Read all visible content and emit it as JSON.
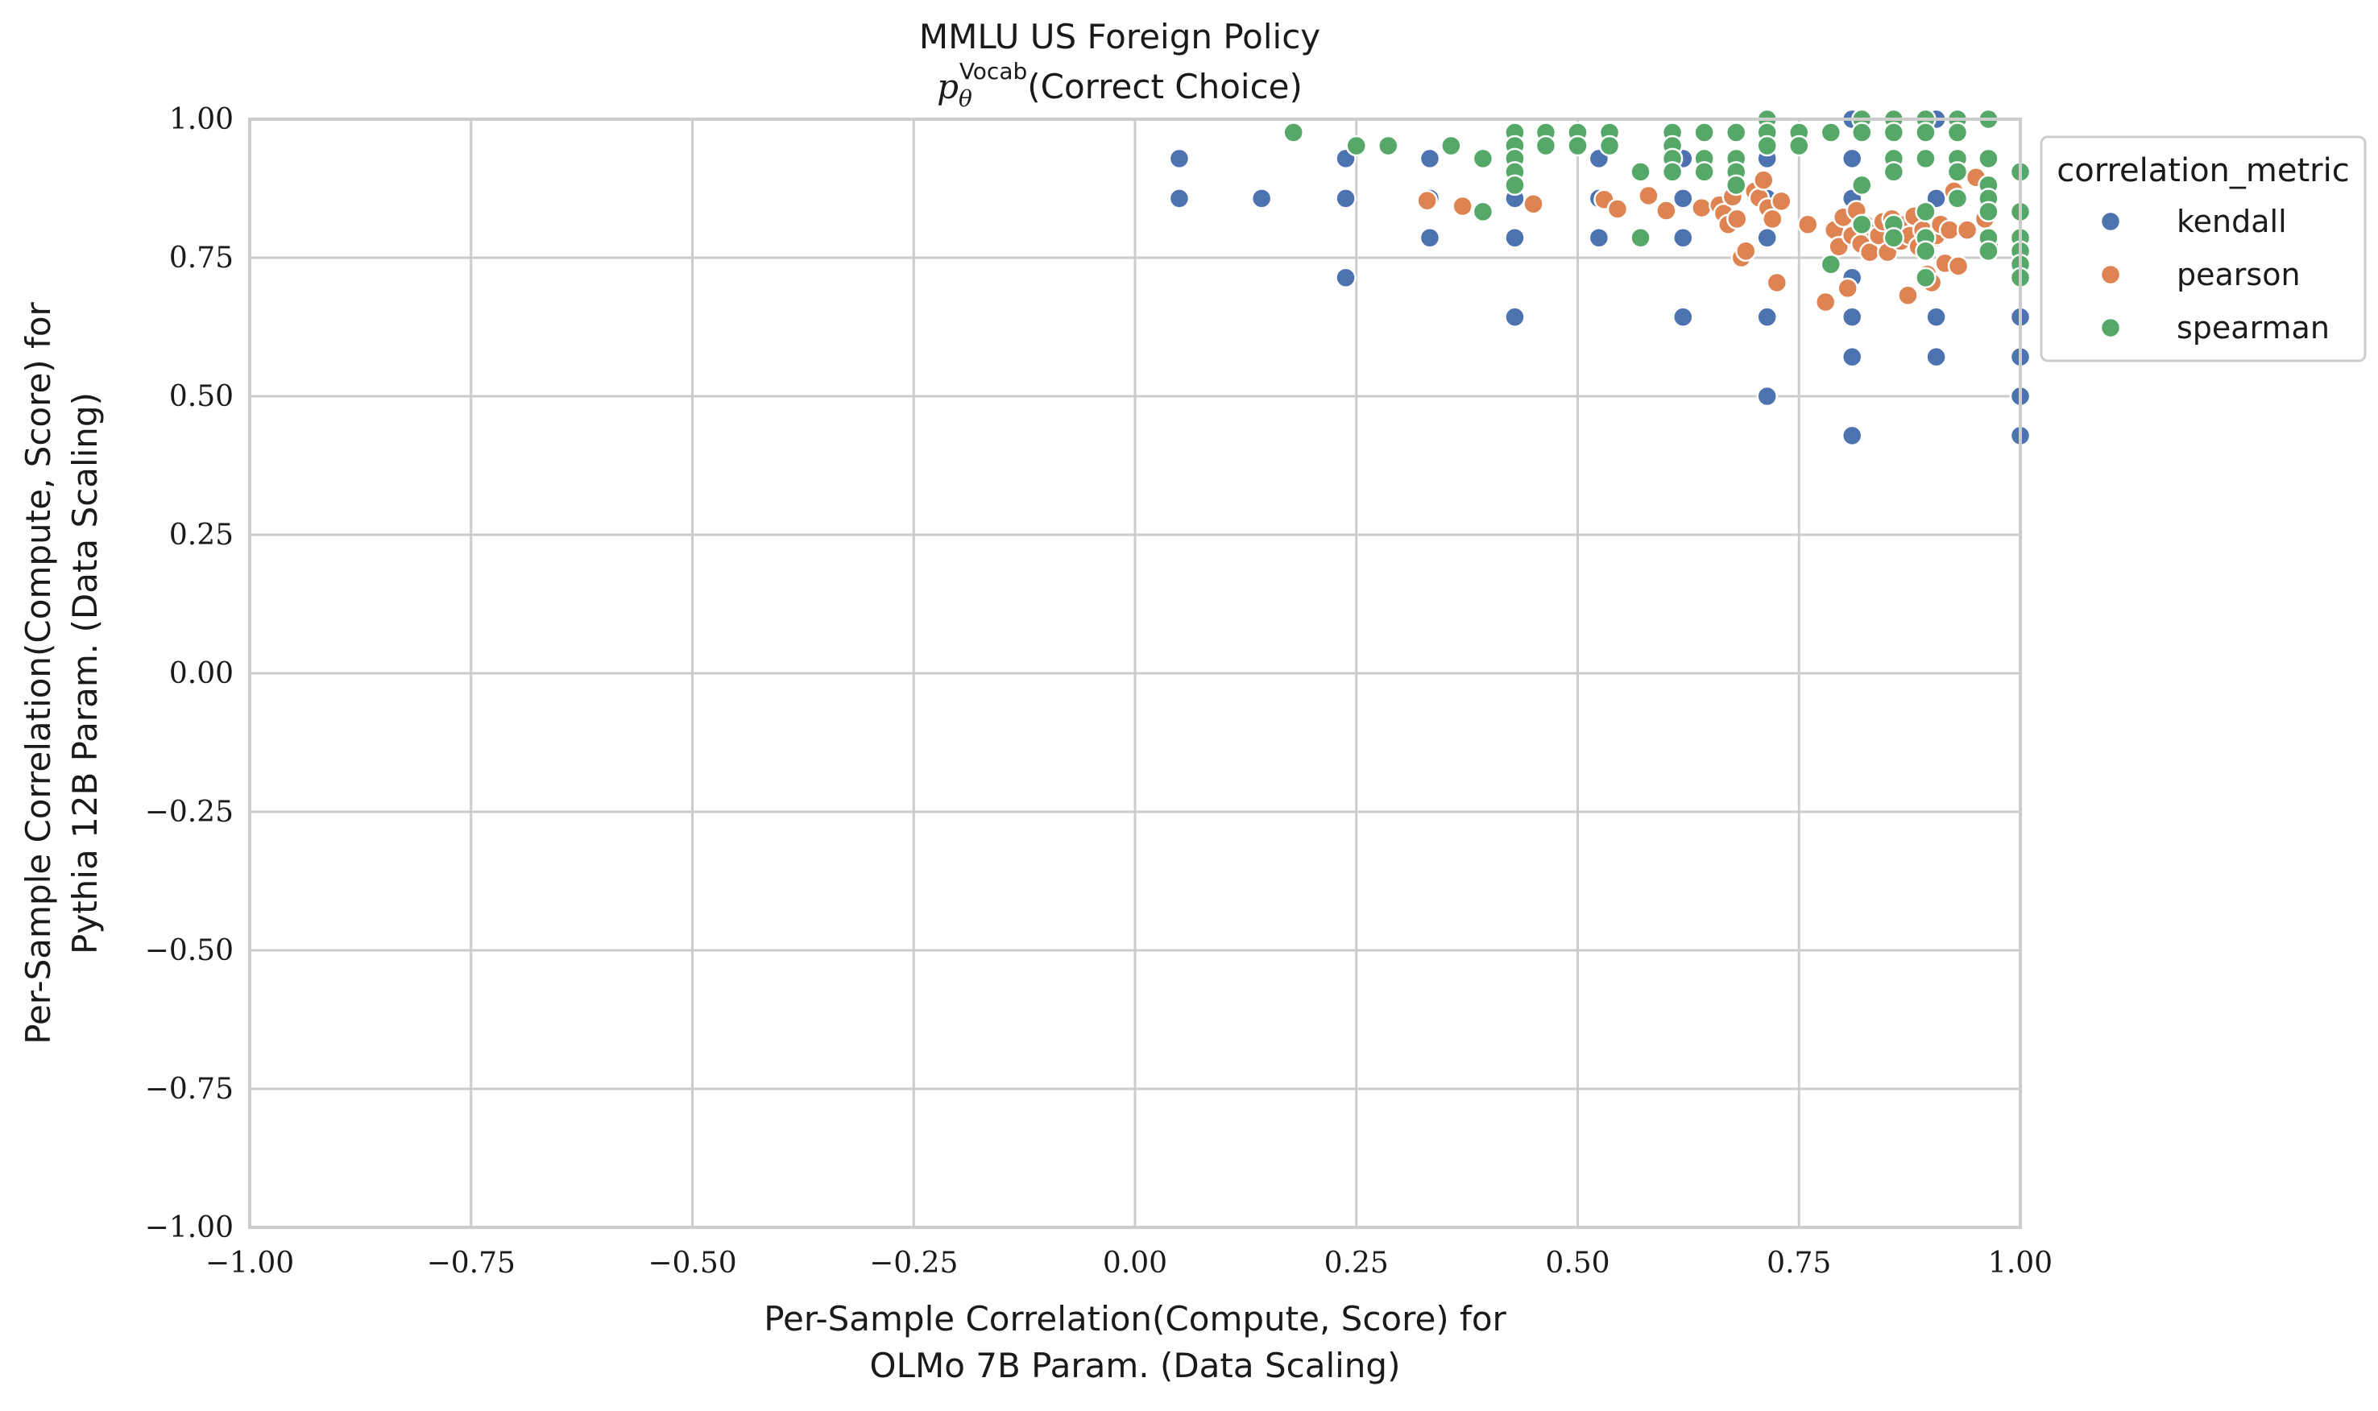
{
  "chart_data": {
    "type": "scatter",
    "title": "MMLU US Foreign Policy",
    "subtitle": {
      "symbol": "p",
      "sub": "θ",
      "sup": "Vocab",
      "text": "(Correct Choice)"
    },
    "xlabel": [
      "Per-Sample Correlation(Compute, Score) for",
      "OLMo 7B Param. (Data Scaling)"
    ],
    "ylabel": [
      "Per-Sample Correlation(Compute, Score) for",
      "Pythia 12B Param. (Data Scaling)"
    ],
    "xlim": [
      -1.0,
      1.0
    ],
    "ylim": [
      -1.0,
      1.0
    ],
    "xticks": [
      "−1.00",
      "−0.75",
      "−0.50",
      "−0.25",
      "0.00",
      "0.25",
      "0.50",
      "0.75",
      "1.00"
    ],
    "yticks": [
      "−1.00",
      "−0.75",
      "−0.50",
      "−0.25",
      "0.00",
      "0.25",
      "0.50",
      "0.75",
      "1.00"
    ],
    "grid": true,
    "legend": {
      "title": "correlation_metric",
      "placement": "outside-top-right"
    },
    "series": [
      {
        "name": "kendall",
        "color": "#4c72b0",
        "points": [
          [
            0.05,
            0.929
          ],
          [
            0.05,
            0.857
          ],
          [
            0.143,
            0.857
          ],
          [
            0.238,
            0.929
          ],
          [
            0.238,
            0.857
          ],
          [
            0.238,
            0.714
          ],
          [
            0.333,
            0.929
          ],
          [
            0.333,
            0.857
          ],
          [
            0.333,
            0.786
          ],
          [
            0.429,
            0.929
          ],
          [
            0.429,
            0.857
          ],
          [
            0.429,
            0.786
          ],
          [
            0.429,
            0.643
          ],
          [
            0.524,
            0.929
          ],
          [
            0.524,
            0.857
          ],
          [
            0.524,
            0.786
          ],
          [
            0.619,
            0.929
          ],
          [
            0.619,
            0.857
          ],
          [
            0.619,
            0.786
          ],
          [
            0.619,
            0.643
          ],
          [
            0.714,
            0.929
          ],
          [
            0.714,
            0.857
          ],
          [
            0.714,
            0.786
          ],
          [
            0.714,
            0.643
          ],
          [
            0.714,
            0.5
          ],
          [
            0.81,
            1.0
          ],
          [
            0.81,
            0.929
          ],
          [
            0.81,
            0.857
          ],
          [
            0.81,
            0.786
          ],
          [
            0.81,
            0.714
          ],
          [
            0.81,
            0.643
          ],
          [
            0.81,
            0.571
          ],
          [
            0.81,
            0.429
          ],
          [
            0.905,
            1.0
          ],
          [
            0.905,
            0.857
          ],
          [
            0.905,
            0.786
          ],
          [
            0.905,
            0.643
          ],
          [
            0.905,
            0.571
          ],
          [
            1.0,
            0.786
          ],
          [
            1.0,
            0.714
          ],
          [
            1.0,
            0.643
          ],
          [
            1.0,
            0.571
          ],
          [
            1.0,
            0.5
          ],
          [
            1.0,
            0.429
          ]
        ]
      },
      {
        "name": "pearson",
        "color": "#dd8452",
        "points": [
          [
            0.33,
            0.853
          ],
          [
            0.37,
            0.843
          ],
          [
            0.45,
            0.847
          ],
          [
            0.53,
            0.855
          ],
          [
            0.545,
            0.838
          ],
          [
            0.58,
            0.862
          ],
          [
            0.6,
            0.835
          ],
          [
            0.64,
            0.84
          ],
          [
            0.66,
            0.845
          ],
          [
            0.665,
            0.83
          ],
          [
            0.67,
            0.81
          ],
          [
            0.675,
            0.86
          ],
          [
            0.68,
            0.82
          ],
          [
            0.685,
            0.75
          ],
          [
            0.69,
            0.762
          ],
          [
            0.7,
            0.87
          ],
          [
            0.705,
            0.858
          ],
          [
            0.71,
            0.89
          ],
          [
            0.715,
            0.84
          ],
          [
            0.72,
            0.82
          ],
          [
            0.725,
            0.705
          ],
          [
            0.73,
            0.852
          ],
          [
            0.76,
            0.81
          ],
          [
            0.78,
            0.67
          ],
          [
            0.79,
            0.8
          ],
          [
            0.795,
            0.77
          ],
          [
            0.8,
            0.823
          ],
          [
            0.805,
            0.695
          ],
          [
            0.81,
            0.79
          ],
          [
            0.815,
            0.835
          ],
          [
            0.82,
            0.775
          ],
          [
            0.825,
            0.81
          ],
          [
            0.83,
            0.76
          ],
          [
            0.835,
            0.8
          ],
          [
            0.84,
            0.79
          ],
          [
            0.845,
            0.815
          ],
          [
            0.85,
            0.76
          ],
          [
            0.855,
            0.82
          ],
          [
            0.86,
            0.8
          ],
          [
            0.865,
            0.78
          ],
          [
            0.87,
            0.81
          ],
          [
            0.873,
            0.682
          ],
          [
            0.875,
            0.79
          ],
          [
            0.88,
            0.825
          ],
          [
            0.885,
            0.77
          ],
          [
            0.89,
            0.8
          ],
          [
            0.895,
            0.72
          ],
          [
            0.9,
            0.705
          ],
          [
            0.905,
            0.79
          ],
          [
            0.91,
            0.81
          ],
          [
            0.915,
            0.74
          ],
          [
            0.92,
            0.8
          ],
          [
            0.925,
            0.87
          ],
          [
            0.93,
            0.735
          ],
          [
            0.94,
            0.8
          ],
          [
            0.95,
            0.895
          ],
          [
            0.96,
            0.82
          ],
          [
            0.965,
            0.77
          ]
        ]
      },
      {
        "name": "spearman",
        "color": "#55a868",
        "points": [
          [
            0.179,
            0.976
          ],
          [
            0.25,
            0.952
          ],
          [
            0.286,
            0.952
          ],
          [
            0.357,
            0.952
          ],
          [
            0.393,
            0.929
          ],
          [
            0.393,
            0.833
          ],
          [
            0.429,
            0.976
          ],
          [
            0.429,
            0.952
          ],
          [
            0.429,
            0.929
          ],
          [
            0.429,
            0.905
          ],
          [
            0.429,
            0.881
          ],
          [
            0.464,
            0.976
          ],
          [
            0.464,
            0.952
          ],
          [
            0.5,
            0.976
          ],
          [
            0.5,
            0.952
          ],
          [
            0.536,
            0.976
          ],
          [
            0.536,
            0.952
          ],
          [
            0.571,
            0.905
          ],
          [
            0.571,
            0.786
          ],
          [
            0.607,
            0.976
          ],
          [
            0.607,
            0.952
          ],
          [
            0.607,
            0.929
          ],
          [
            0.607,
            0.905
          ],
          [
            0.643,
            0.976
          ],
          [
            0.643,
            0.929
          ],
          [
            0.643,
            0.905
          ],
          [
            0.679,
            0.976
          ],
          [
            0.679,
            0.929
          ],
          [
            0.679,
            0.905
          ],
          [
            0.679,
            0.881
          ],
          [
            0.714,
            1.0
          ],
          [
            0.714,
            0.976
          ],
          [
            0.714,
            0.952
          ],
          [
            0.75,
            0.976
          ],
          [
            0.75,
            0.952
          ],
          [
            0.786,
            0.976
          ],
          [
            0.786,
            0.738
          ],
          [
            0.821,
            1.0
          ],
          [
            0.821,
            0.976
          ],
          [
            0.821,
            0.881
          ],
          [
            0.821,
            0.81
          ],
          [
            0.857,
            1.0
          ],
          [
            0.857,
            0.976
          ],
          [
            0.857,
            0.929
          ],
          [
            0.857,
            0.905
          ],
          [
            0.857,
            0.81
          ],
          [
            0.857,
            0.786
          ],
          [
            0.893,
            1.0
          ],
          [
            0.893,
            0.976
          ],
          [
            0.893,
            0.929
          ],
          [
            0.893,
            0.833
          ],
          [
            0.893,
            0.786
          ],
          [
            0.893,
            0.762
          ],
          [
            0.893,
            0.714
          ],
          [
            0.929,
            1.0
          ],
          [
            0.929,
            0.976
          ],
          [
            0.929,
            0.929
          ],
          [
            0.929,
            0.905
          ],
          [
            0.929,
            0.857
          ],
          [
            0.964,
            1.0
          ],
          [
            0.964,
            0.929
          ],
          [
            0.964,
            0.881
          ],
          [
            0.964,
            0.857
          ],
          [
            0.964,
            0.833
          ],
          [
            0.964,
            0.786
          ],
          [
            0.964,
            0.762
          ],
          [
            1.0,
            0.905
          ],
          [
            1.0,
            0.833
          ],
          [
            1.0,
            0.786
          ],
          [
            1.0,
            0.762
          ],
          [
            1.0,
            0.738
          ],
          [
            1.0,
            0.714
          ]
        ]
      }
    ]
  }
}
